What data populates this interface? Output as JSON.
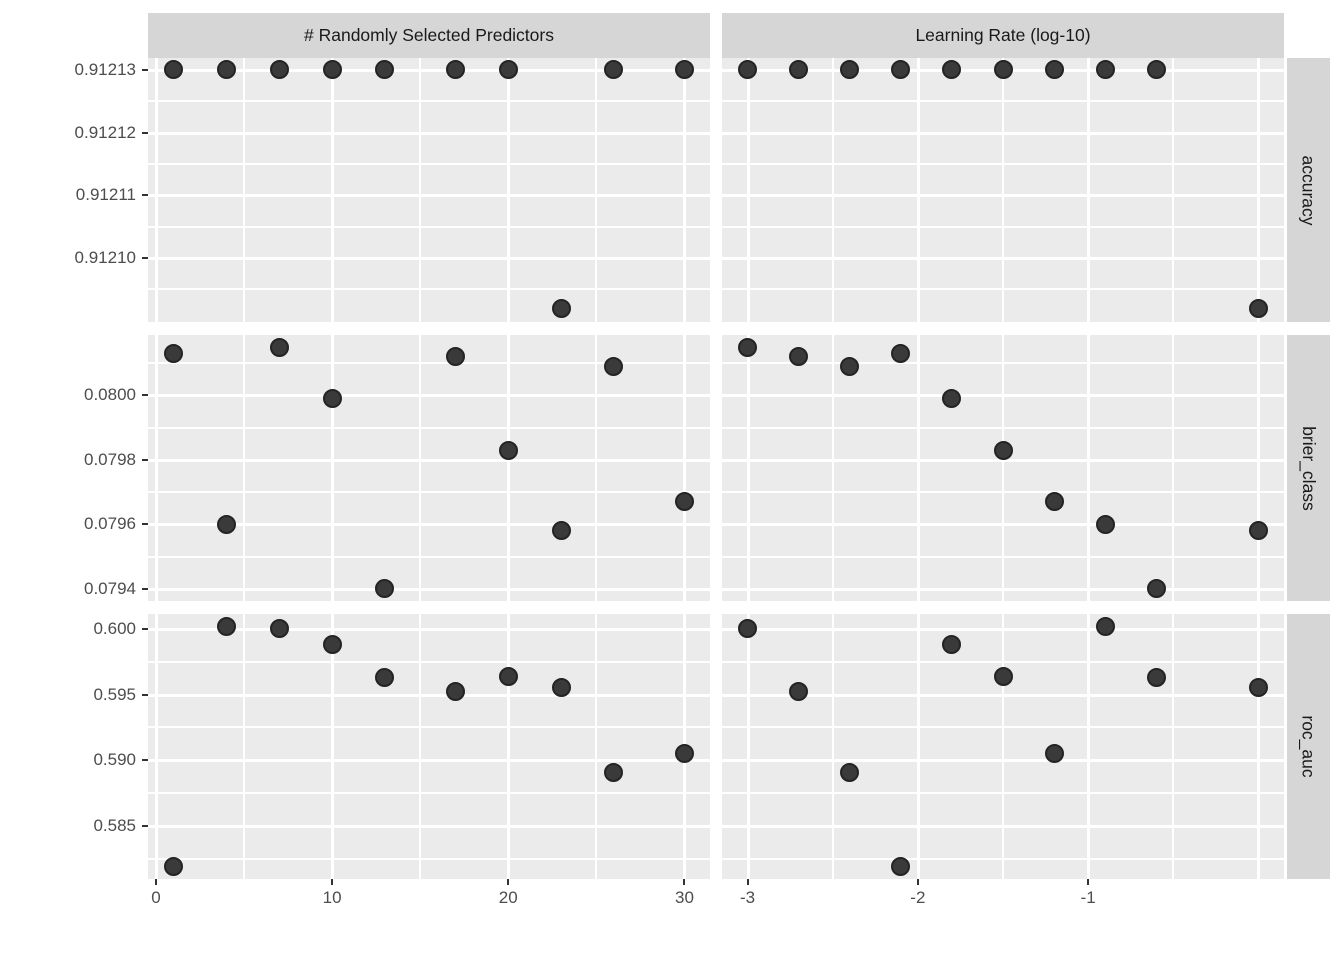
{
  "colors": {
    "panel_background": "#ebebeb",
    "strip_background": "#d6d6d6",
    "gridline": "#ffffff",
    "point": "#3a3a3a",
    "axis_text": "#4d4d4d",
    "strip_text": "#1a1a1a"
  },
  "chart_data": {
    "type": "scatter",
    "title": "",
    "legend": "none",
    "grid": "on",
    "description": "Faceted tuning-results plot: three performance metrics (rows) versus two tuning parameters (columns) for 10 model candidates.",
    "col_facets": [
      {
        "label": "# Randomly Selected Predictors",
        "param": "mtry",
        "x_range": [
          -0.45,
          31.45
        ],
        "x_tick_values": [
          0,
          10,
          20,
          30
        ],
        "x_tick_labels": [
          "0",
          "10",
          "20",
          "30"
        ],
        "x_minor_values": [
          5,
          15,
          25
        ],
        "x_extra_gridlines": []
      },
      {
        "label": "Learning Rate (log-10)",
        "param": "log10_learn_rate",
        "x_range": [
          -3.15,
          0.15
        ],
        "x_tick_values": [
          -3,
          -2,
          -1
        ],
        "x_tick_labels": [
          "-3",
          "-2",
          "-1"
        ],
        "x_minor_values": [
          -2.5,
          -1.5,
          -0.5
        ],
        "x_extra_gridlines": [
          0
        ]
      }
    ],
    "row_facets": [
      {
        "label": "accuracy",
        "metric": "accuracy",
        "y_range": [
          0.9120898,
          0.9121319
        ],
        "y_tick_values": [
          0.91213,
          0.91212,
          0.91211,
          0.9121
        ],
        "y_tick_labels": [
          "0.91213",
          "0.91212",
          "0.91211",
          "0.91210"
        ],
        "y_minor_values": [
          0.912095,
          0.912105,
          0.912115,
          0.912125
        ]
      },
      {
        "label": "brier_class",
        "metric": "brier_class",
        "y_range": [
          0.0793625,
          0.0801875
        ],
        "y_tick_values": [
          0.08,
          0.0798,
          0.0796,
          0.0794
        ],
        "y_tick_labels": [
          "0.0800",
          "0.0798",
          "0.0796",
          "0.0794"
        ],
        "y_minor_values": [
          0.0795,
          0.0797,
          0.0799,
          0.0801
        ]
      },
      {
        "label": "roc_auc",
        "metric": "roc_auc",
        "y_range": [
          0.580985,
          0.601115
        ],
        "y_tick_values": [
          0.6,
          0.595,
          0.59,
          0.585
        ],
        "y_tick_labels": [
          "0.600",
          "0.595",
          "0.590",
          "0.585"
        ],
        "y_minor_values": [
          0.5825,
          0.5875,
          0.5925,
          0.5975
        ]
      }
    ],
    "candidates": [
      {
        "mtry": 1,
        "log10_learn_rate": -2.1,
        "accuracy": 0.91213,
        "brier_class": 0.08013,
        "roc_auc": 0.5819
      },
      {
        "mtry": 4,
        "log10_learn_rate": -0.9,
        "accuracy": 0.91213,
        "brier_class": 0.0796,
        "roc_auc": 0.6002
      },
      {
        "mtry": 7,
        "log10_learn_rate": -3.0,
        "accuracy": 0.91213,
        "brier_class": 0.08015,
        "roc_auc": 0.6
      },
      {
        "mtry": 10,
        "log10_learn_rate": -1.8,
        "accuracy": 0.91213,
        "brier_class": 0.07999,
        "roc_auc": 0.5988
      },
      {
        "mtry": 13,
        "log10_learn_rate": -0.6,
        "accuracy": 0.91213,
        "brier_class": 0.0794,
        "roc_auc": 0.5963
      },
      {
        "mtry": 17,
        "log10_learn_rate": -2.7,
        "accuracy": 0.91213,
        "brier_class": 0.08012,
        "roc_auc": 0.5952
      },
      {
        "mtry": 20,
        "log10_learn_rate": -1.5,
        "accuracy": 0.91213,
        "brier_class": 0.07983,
        "roc_auc": 0.5964
      },
      {
        "mtry": 23,
        "log10_learn_rate": 0.0,
        "accuracy": 0.912092,
        "brier_class": 0.07958,
        "roc_auc": 0.5955
      },
      {
        "mtry": 26,
        "log10_learn_rate": -2.4,
        "accuracy": 0.91213,
        "brier_class": 0.08009,
        "roc_auc": 0.5891
      },
      {
        "mtry": 30,
        "log10_learn_rate": -1.2,
        "accuracy": 0.91213,
        "brier_class": 0.07967,
        "roc_auc": 0.5905
      }
    ]
  }
}
